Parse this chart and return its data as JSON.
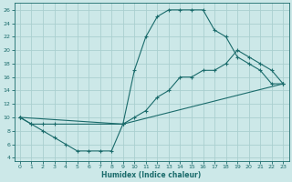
{
  "xlabel": "Humidex (Indice chaleur)",
  "bg_color": "#cce8e8",
  "grid_color": "#aacfcf",
  "line_color": "#1a6b6b",
  "xlim": [
    -0.5,
    23.5
  ],
  "ylim": [
    3.5,
    27
  ],
  "xticks": [
    0,
    1,
    2,
    3,
    4,
    5,
    6,
    7,
    8,
    9,
    10,
    11,
    12,
    13,
    14,
    15,
    16,
    17,
    18,
    19,
    20,
    21,
    22,
    23
  ],
  "yticks": [
    4,
    6,
    8,
    10,
    12,
    14,
    16,
    18,
    20,
    22,
    24,
    26
  ],
  "line1_x": [
    0,
    1,
    2,
    3,
    4,
    5,
    6,
    7,
    8,
    9,
    10,
    11,
    12,
    13,
    14,
    15,
    16,
    17,
    18,
    19,
    20,
    21,
    22,
    23
  ],
  "line1_y": [
    10,
    9,
    8,
    7,
    6,
    5,
    5,
    5,
    5,
    9,
    17,
    22,
    25,
    26,
    26,
    26,
    26,
    23,
    22,
    19,
    18,
    17,
    15,
    15
  ],
  "line2_x": [
    0,
    1,
    2,
    3,
    9,
    10,
    11,
    12,
    13,
    14,
    15,
    16,
    17,
    18,
    19,
    20,
    21,
    22,
    23
  ],
  "line2_y": [
    10,
    9,
    9,
    9,
    9,
    10,
    11,
    13,
    14,
    16,
    16,
    17,
    17,
    18,
    20,
    19,
    18,
    17,
    15
  ],
  "line3_x": [
    0,
    9,
    23
  ],
  "line3_y": [
    10,
    9,
    15
  ]
}
